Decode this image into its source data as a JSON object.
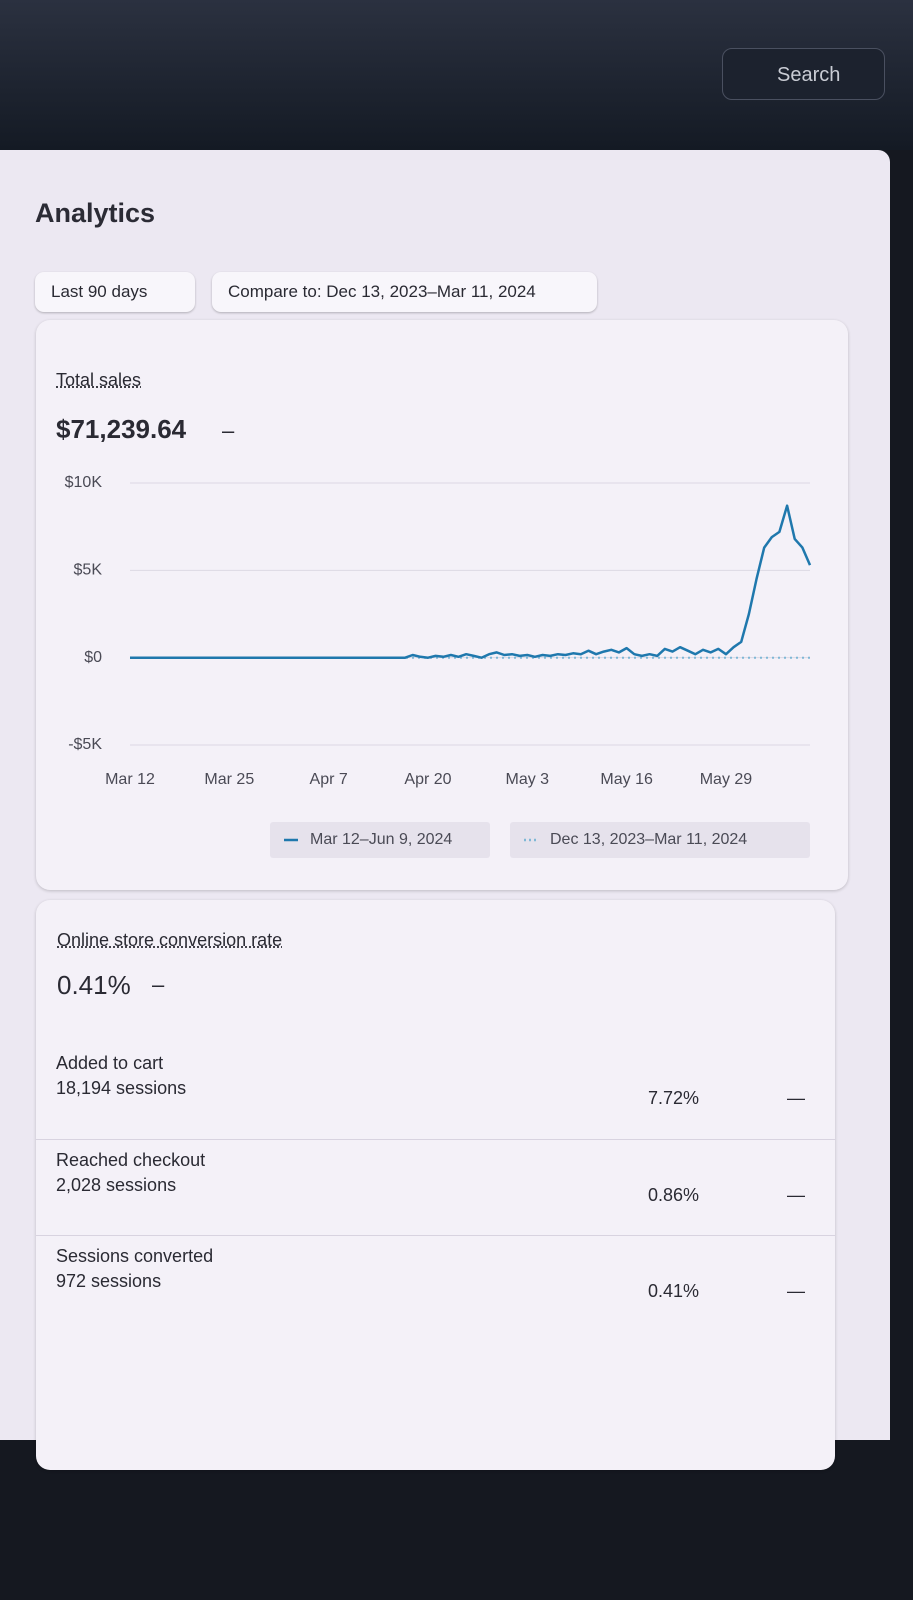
{
  "search": {
    "placeholder": "Search"
  },
  "header": {
    "title": "Analytics"
  },
  "filters": {
    "range": "Last 90 days",
    "compare": "Compare to: Dec 13, 2023–Mar 11, 2024"
  },
  "total_sales": {
    "label": "Total sales",
    "value": "$71,239.64",
    "change": "–"
  },
  "chart_data": {
    "type": "line",
    "categories": [
      "Mar 12",
      null,
      null,
      null,
      null,
      null,
      null,
      null,
      null,
      null,
      null,
      null,
      null,
      "Mar 25",
      null,
      null,
      null,
      null,
      null,
      null,
      null,
      null,
      null,
      null,
      null,
      null,
      "Apr 7",
      null,
      null,
      null,
      null,
      null,
      null,
      null,
      null,
      null,
      null,
      null,
      null,
      "Apr 20",
      null,
      null,
      null,
      null,
      null,
      null,
      null,
      null,
      null,
      null,
      null,
      null,
      "May 3",
      null,
      null,
      null,
      null,
      null,
      null,
      null,
      null,
      null,
      null,
      null,
      null,
      "May 16",
      null,
      null,
      null,
      null,
      null,
      null,
      null,
      null,
      null,
      null,
      null,
      null,
      "May 29",
      null,
      null,
      null,
      null,
      null,
      null,
      null,
      null,
      null,
      null,
      null
    ],
    "series": [
      {
        "name": "Mar 12–Jun 9, 2024",
        "color": "#1f78ad",
        "dash": "solid",
        "values": [
          0,
          0,
          0,
          0,
          0,
          0,
          0,
          0,
          0,
          0,
          0,
          0,
          0,
          0,
          0,
          0,
          0,
          0,
          0,
          0,
          0,
          0,
          0,
          0,
          0,
          0,
          0,
          0,
          0,
          0,
          0,
          0,
          0,
          0,
          0,
          0,
          0,
          150,
          50,
          0,
          100,
          50,
          150,
          50,
          200,
          100,
          0,
          200,
          300,
          150,
          200,
          100,
          150,
          50,
          150,
          100,
          200,
          150,
          250,
          200,
          400,
          200,
          350,
          450,
          300,
          550,
          200,
          100,
          200,
          100,
          500,
          350,
          600,
          400,
          200,
          450,
          300,
          500,
          200,
          600,
          900,
          2500,
          4500,
          6300,
          6900,
          7200,
          8700,
          6800,
          6300,
          5300
        ]
      },
      {
        "name": "Dec 13, 2023–Mar 11, 2024",
        "color": "#7fb8d6",
        "dash": "dotted",
        "values": [
          0,
          0,
          0,
          0,
          0,
          0,
          0,
          0,
          0,
          0,
          0,
          0,
          0,
          0,
          0,
          0,
          0,
          0,
          0,
          0,
          0,
          0,
          0,
          0,
          0,
          0,
          0,
          0,
          0,
          0,
          0,
          0,
          0,
          0,
          0,
          0,
          0,
          0,
          0,
          0,
          0,
          0,
          0,
          0,
          0,
          0,
          0,
          0,
          0,
          0,
          0,
          0,
          0,
          0,
          0,
          0,
          0,
          0,
          0,
          0,
          0,
          0,
          0,
          0,
          0,
          0,
          0,
          0,
          0,
          0,
          0,
          0,
          0,
          0,
          0,
          0,
          0,
          0,
          0,
          0,
          0,
          0,
          0,
          0,
          0,
          0,
          0,
          0,
          0,
          0
        ]
      }
    ],
    "ylim": [
      -5000,
      10000
    ],
    "yticks": [
      {
        "value": -5000,
        "label": "-$5K"
      },
      {
        "value": 0,
        "label": "$0"
      },
      {
        "value": 5000,
        "label": "$5K"
      },
      {
        "value": 10000,
        "label": "$10K"
      }
    ],
    "grid": true
  },
  "conversion": {
    "label": "Online store conversion rate",
    "value": "0.41%",
    "change": "–",
    "rows": [
      {
        "label": "Added to cart",
        "sessions": "18,194 sessions",
        "rate": "7.72%",
        "change": "—"
      },
      {
        "label": "Reached checkout",
        "sessions": "2,028 sessions",
        "rate": "0.86%",
        "change": "—"
      },
      {
        "label": "Sessions converted",
        "sessions": "972 sessions",
        "rate": "0.41%",
        "change": "—"
      }
    ]
  }
}
